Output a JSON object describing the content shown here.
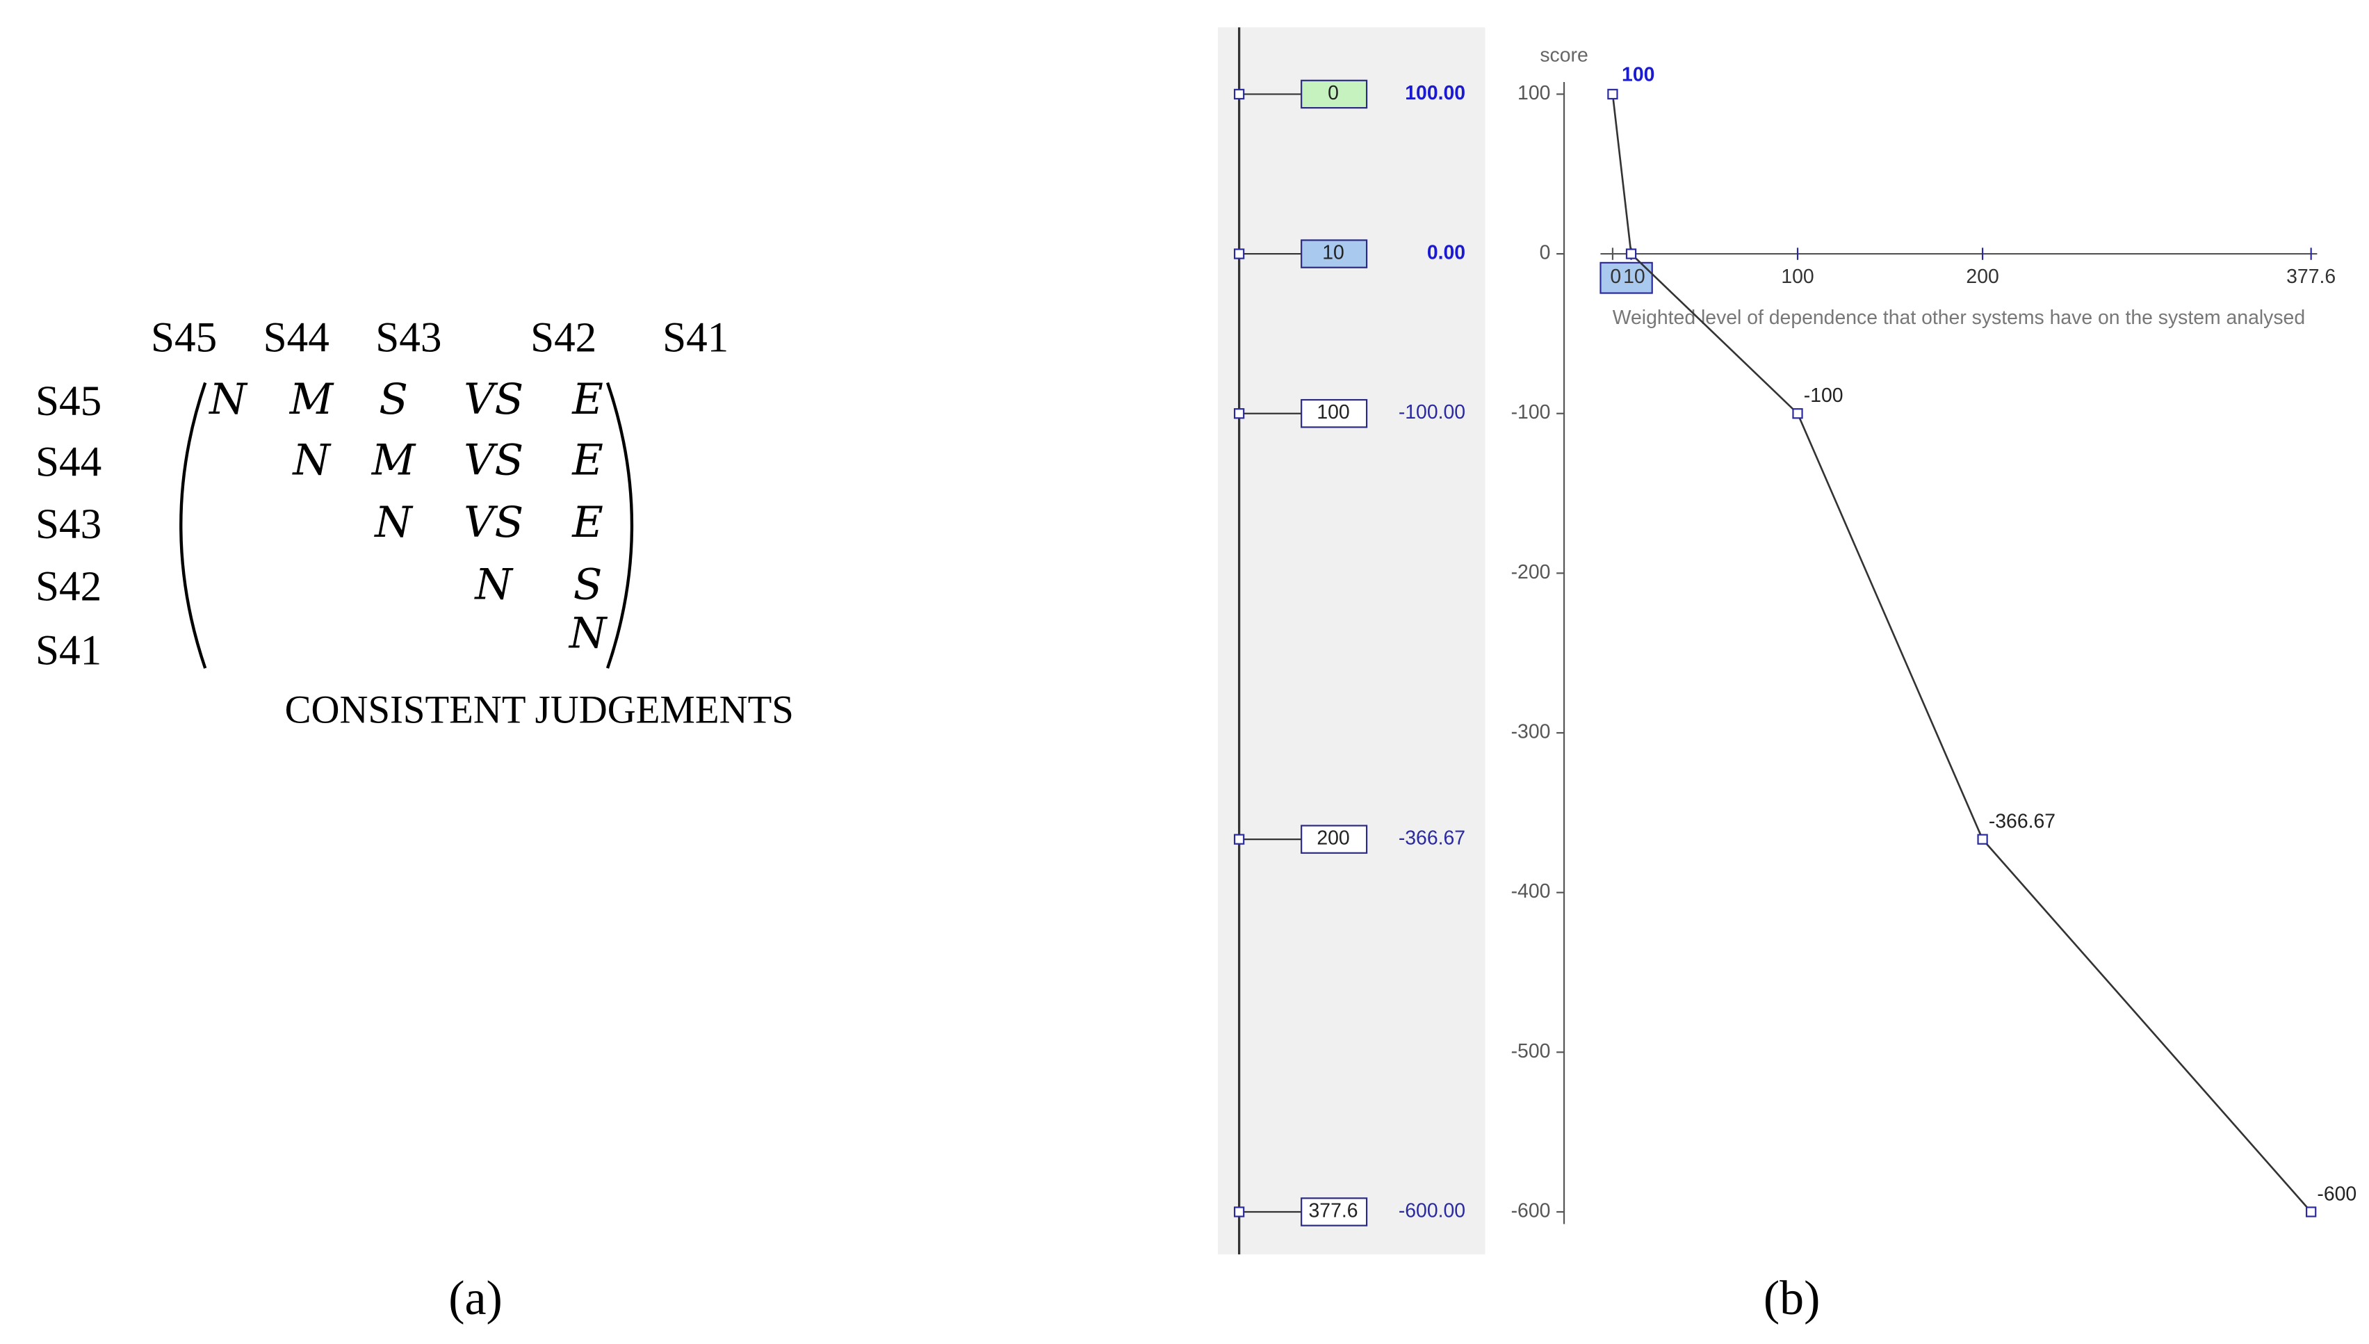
{
  "matrix": {
    "column_headers": [
      "S45",
      "S44",
      "S43",
      "S42",
      "S41"
    ],
    "row_headers": [
      "S45",
      "S44",
      "S43",
      "S42",
      "S41"
    ],
    "rows": [
      [
        "N",
        "M",
        "S",
        "VS",
        "E"
      ],
      [
        "N",
        "M",
        "VS",
        "E"
      ],
      [
        "N",
        "VS",
        "E"
      ],
      [
        "N",
        "S"
      ],
      [
        "N"
      ]
    ],
    "caption": "CONSISTENT JUDGEMENTS"
  },
  "captions": [
    "(a)",
    "(b)"
  ],
  "chart_data": {
    "type": "line",
    "ylabel": "score",
    "xlabel": "Weighted level of dependence that other systems have on the system analysed",
    "x": [
      0,
      10,
      100,
      200,
      377.6
    ],
    "values": [
      100,
      0,
      -100,
      -366.67,
      -600
    ],
    "value_labels": [
      "100",
      null,
      "-100",
      "-366.67",
      "-600"
    ],
    "scale_labels": [
      "100.00",
      "0.00",
      "-100.00",
      "-366.67",
      "-600.00"
    ],
    "box_colors": [
      "#c6f2c0",
      "#a9c9ef",
      "#ffffff",
      "#ffffff",
      "#ffffff"
    ],
    "color": "#333333",
    "xlim": [
      0,
      377.6
    ],
    "xticks": [
      0,
      10,
      100,
      200,
      377.6
    ],
    "ylim": [
      -600,
      100
    ],
    "yticks": [
      100,
      0,
      -100,
      -200,
      -300,
      -400,
      -500,
      -600
    ]
  }
}
